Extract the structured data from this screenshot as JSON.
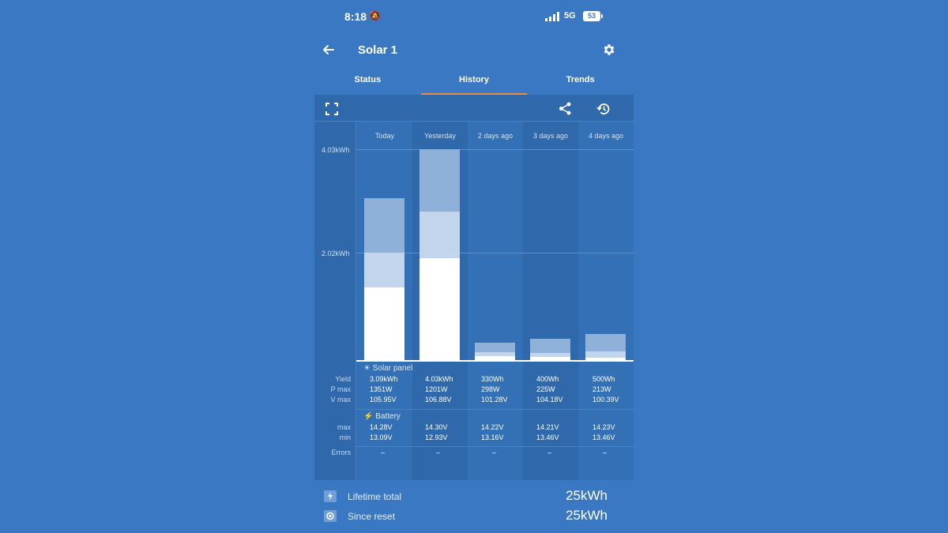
{
  "status_bar": {
    "time": "8:18",
    "network": "5G",
    "battery": "53"
  },
  "header": {
    "title": "Solar 1"
  },
  "tabs": [
    {
      "label": "Status",
      "active": false
    },
    {
      "label": "History",
      "active": true
    },
    {
      "label": "Trends",
      "active": false
    }
  ],
  "icons": {
    "fullscreen": "fullscreen-icon",
    "share": "share-icon",
    "history": "history-icon",
    "back": "back-arrow-icon",
    "settings": "gear-icon"
  },
  "chart": {
    "y_ticks": [
      "4.03kWh",
      "2.02kWh"
    ],
    "columns": [
      "Today",
      "Yesterday",
      "2 days ago",
      "3 days ago",
      "4 days ago"
    ]
  },
  "chart_data": {
    "type": "bar",
    "categories": [
      "Today",
      "Yesterday",
      "2 days ago",
      "3 days ago",
      "4 days ago"
    ],
    "ylim": [
      0,
      4.03
    ],
    "y_unit": "kWh",
    "yield_kwh": [
      3.09,
      4.03,
      0.33,
      0.4,
      0.5
    ],
    "series": [
      {
        "values": [
          1.39,
          1.94,
          0.07,
          0.06,
          0.05
        ]
      },
      {
        "values": [
          0.66,
          0.9,
          0.08,
          0.07,
          0.12
        ]
      },
      {
        "values": [
          1.04,
          1.19,
          0.18,
          0.27,
          0.33
        ]
      }
    ]
  },
  "solar_panel": {
    "title": "Solar panel",
    "labels": {
      "yield": "Yield",
      "pmax": "P max",
      "vmax": "V max"
    },
    "yield": [
      "3.09kWh",
      "4.03kWh",
      "330Wh",
      "400Wh",
      "500Wh"
    ],
    "pmax": [
      "1351W",
      "1201W",
      "298W",
      "225W",
      "213W"
    ],
    "vmax": [
      "105.95V",
      "106.88V",
      "101.28V",
      "104.18V",
      "100.39V"
    ]
  },
  "battery": {
    "title": "Battery",
    "labels": {
      "max": "max",
      "min": "min"
    },
    "max": [
      "14.28V",
      "14.30V",
      "14.22V",
      "14.21V",
      "14.23V"
    ],
    "min": [
      "13.09V",
      "12.93V",
      "13.16V",
      "13.46V",
      "13.46V"
    ]
  },
  "errors": {
    "label": "Errors",
    "values": [
      "–",
      "–",
      "–",
      "–",
      "–"
    ]
  },
  "footer": {
    "lifetime_label": "Lifetime total",
    "lifetime_value": "25kWh",
    "reset_label": "Since reset",
    "reset_value": "25kWh"
  },
  "colors": {
    "background": "#3a78c4",
    "panel": "#2f68ab",
    "tab_indicator": "#f08a3c",
    "bar_top": "#8fb0d8",
    "bar_mid": "#c3d5ec",
    "bar_bottom": "#ffffff"
  }
}
